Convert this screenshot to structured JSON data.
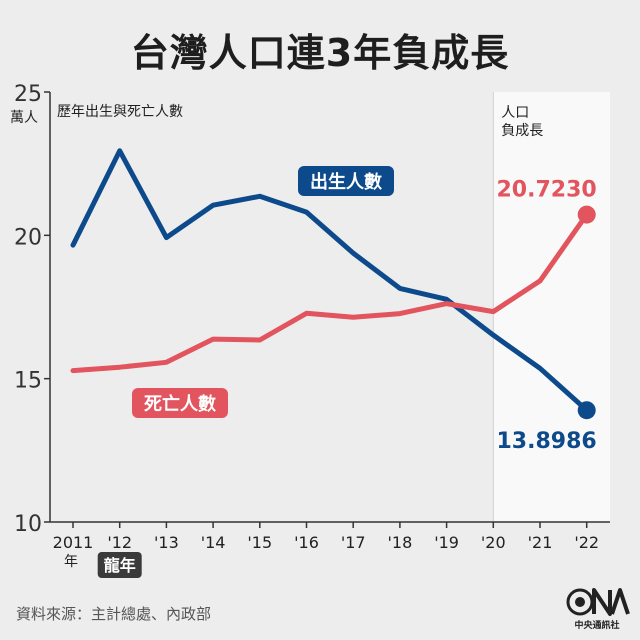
{
  "title": "台灣人口連3年負成長",
  "source": "資料來源：主計總處、內政部",
  "logo_text": "中央通訊社",
  "chart_data": {
    "type": "line",
    "unit": "萬人",
    "subtitle": "歷年出生與死亡人數",
    "x": [
      "2011",
      "'12",
      "'13",
      "'14",
      "'15",
      "'16",
      "'17",
      "'18",
      "'19",
      "'20",
      "'21",
      "'22"
    ],
    "x_first_suffix": "年",
    "ylim": [
      10,
      25
    ],
    "yticks": [
      10,
      15,
      20,
      25
    ],
    "shaded_region": {
      "from": "'20",
      "to": "'22",
      "label_line1": "人口",
      "label_line2": "負成長"
    },
    "annotation": {
      "at": "'12",
      "text": "龍年"
    },
    "series": [
      {
        "name": "出生人數",
        "color": "#0d4a8c",
        "values": [
          19.66,
          22.95,
          19.92,
          21.05,
          21.36,
          20.81,
          19.38,
          18.15,
          17.77,
          16.52,
          15.36,
          13.8986
        ],
        "end_label": "13.8986"
      },
      {
        "name": "死亡人數",
        "color": "#e2545e",
        "values": [
          15.28,
          15.4,
          15.57,
          16.38,
          16.35,
          17.28,
          17.14,
          17.27,
          17.62,
          17.34,
          18.41,
          20.723
        ],
        "end_label": "20.7230"
      }
    ]
  },
  "colors": {
    "background": "#ededed",
    "shade": "#f9f9f9",
    "annotation_bg": "#3a3a3a"
  }
}
